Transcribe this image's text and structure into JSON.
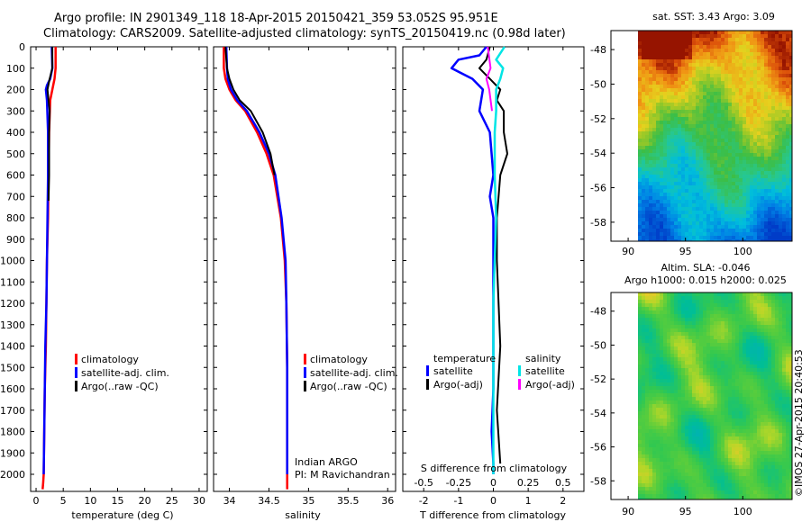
{
  "title": {
    "line1": "Argo profile: IN 2901349_118 18-Apr-2015 20150421_359 53.052S 95.951E",
    "line2": "Climatology: CARS2009. Satellite-adjusted climatology: synTS_20150419.nc (0.98d later)"
  },
  "colors": {
    "climatology": "#ff0000",
    "satellite": "#0000ff",
    "argo": "#000000",
    "sal_satellite": "#00e5e5",
    "sal_argo": "#ff00ff"
  },
  "chart_data": [
    {
      "type": "line",
      "panel": "temperature",
      "xlabel": "temperature (deg C)",
      "ylabel": "",
      "xlim": [
        -1,
        31.5
      ],
      "ylim": [
        2080,
        0
      ],
      "xticks": [
        "0",
        "5",
        "10",
        "15",
        "20",
        "25",
        "30"
      ],
      "yticks": [
        "0",
        "100",
        "200",
        "300",
        "400",
        "500",
        "600",
        "700",
        "800",
        "900",
        "1000",
        "1100",
        "1200",
        "1300",
        "1400",
        "1500",
        "1600",
        "1700",
        "1800",
        "1900",
        "2000"
      ],
      "legend": [
        "climatology",
        "satellite-adj. clim.",
        "Argo(..raw -QC)"
      ],
      "series": [
        {
          "name": "climatology",
          "x": [
            3.6,
            3.6,
            3.4,
            3.0,
            2.6,
            2.4,
            2.3,
            2.2,
            2.0,
            1.9,
            1.8,
            1.6,
            1.5,
            1.4,
            1.3,
            1.2
          ],
          "y": [
            0,
            100,
            150,
            200,
            250,
            400,
            600,
            800,
            1000,
            1200,
            1400,
            1600,
            1800,
            2000,
            2040,
            2070
          ]
        },
        {
          "name": "satellite-adj. clim.",
          "x": [
            2.9,
            3.0,
            2.6,
            2.0,
            1.8,
            2.0,
            2.2,
            2.2,
            2.1,
            2.0,
            1.9,
            1.7,
            1.6,
            1.5,
            1.4
          ],
          "y": [
            0,
            100,
            150,
            180,
            200,
            250,
            400,
            600,
            800,
            1000,
            1200,
            1400,
            1600,
            1800,
            2000
          ]
        },
        {
          "name": "Argo(..raw -QC)",
          "x": [
            3.0,
            3.0,
            2.5,
            2.1,
            2.3,
            2.5,
            2.4,
            2.4,
            2.3
          ],
          "y": [
            0,
            100,
            150,
            200,
            250,
            300,
            400,
            600,
            720
          ]
        }
      ]
    },
    {
      "type": "line",
      "panel": "salinity",
      "xlabel": "salinity",
      "ylabel": "",
      "xlim": [
        33.8,
        36.1
      ],
      "ylim": [
        2080,
        0
      ],
      "xticks": [
        "34",
        "34.5",
        "35",
        "35.5",
        "36"
      ],
      "legend": [
        "climatology",
        "satellite-adj. clim.",
        "Argo(..raw -QC)"
      ],
      "annotations": [
        "Indian ARGO",
        "PI: M Ravichandran"
      ],
      "series": [
        {
          "name": "climatology",
          "x": [
            33.93,
            33.93,
            33.95,
            34.0,
            34.08,
            34.2,
            34.35,
            34.47,
            34.56,
            34.65,
            34.7,
            34.72,
            34.73,
            34.73,
            34.73
          ],
          "y": [
            0,
            100,
            150,
            200,
            250,
            300,
            400,
            500,
            600,
            800,
            1000,
            1200,
            1500,
            1800,
            2070
          ]
        },
        {
          "name": "satellite-adj. clim.",
          "x": [
            33.96,
            33.97,
            33.98,
            34.02,
            34.1,
            34.22,
            34.38,
            34.5,
            34.58,
            34.66,
            34.71,
            34.72,
            34.73,
            34.73,
            34.73
          ],
          "y": [
            0,
            100,
            150,
            200,
            250,
            300,
            400,
            500,
            600,
            800,
            1000,
            1200,
            1500,
            1800,
            2000
          ]
        },
        {
          "name": "Argo(..raw -QC)",
          "x": [
            33.95,
            33.97,
            34.0,
            34.05,
            34.13,
            34.27,
            34.42,
            34.52,
            34.57
          ],
          "y": [
            0,
            100,
            150,
            200,
            250,
            300,
            400,
            500,
            600
          ]
        }
      ]
    },
    {
      "type": "line",
      "panel": "difference",
      "xlabel": "T difference from climatology",
      "x2label": "S difference from climatology",
      "xlim": [
        -2.6,
        2.6
      ],
      "x2lim": [
        -0.65,
        0.65
      ],
      "ylim": [
        2080,
        0
      ],
      "xticks": [
        "-2",
        "-1",
        "0",
        "1",
        "2"
      ],
      "x2ticks": [
        "-0.5",
        "-0.25",
        "0",
        "0.25",
        "0.5"
      ],
      "legend_titles": [
        "temperature",
        "salinity"
      ],
      "legend": [
        "satellite",
        "Argo(-adj)",
        "satellite",
        "Argo(-adj)"
      ],
      "series": [
        {
          "name": "temperature satellite",
          "x": [
            -0.2,
            -0.4,
            -1.0,
            -1.2,
            -0.6,
            -0.3,
            -0.4,
            -0.1,
            0.0,
            -0.1,
            0.0,
            0.0,
            0.0,
            0.0,
            0.0,
            -0.05,
            0.0,
            0.0
          ],
          "y": [
            0,
            40,
            60,
            100,
            150,
            200,
            300,
            400,
            600,
            700,
            800,
            1000,
            1200,
            1400,
            1600,
            1800,
            1950,
            2000
          ]
        },
        {
          "name": "temperature Argo(-adj)",
          "x": [
            -0.1,
            -0.2,
            -0.4,
            -0.1,
            0.2,
            0.1,
            0.3,
            0.3,
            0.4,
            0.2,
            0.1,
            0.1,
            0.2,
            0.1,
            0.2
          ],
          "y": [
            0,
            60,
            100,
            150,
            200,
            250,
            300,
            400,
            500,
            600,
            800,
            1000,
            1400,
            1700,
            1950
          ]
        },
        {
          "name": "salinity satellite",
          "x": [
            0.08,
            0.02,
            0.07,
            0.05,
            0.02,
            0.02,
            0.01,
            0.01,
            0.02,
            0.01,
            0.0,
            0.0,
            0.0,
            0.0
          ],
          "y": [
            0,
            60,
            100,
            150,
            200,
            300,
            400,
            600,
            800,
            1000,
            1200,
            1500,
            1800,
            2000
          ]
        },
        {
          "name": "salinity Argo(-adj)",
          "x": [
            -0.04,
            -0.02,
            -0.05,
            -0.03,
            -0.01
          ],
          "y": [
            0,
            100,
            150,
            200,
            300
          ]
        }
      ]
    },
    {
      "type": "heatmap",
      "panel": "sst-map",
      "title": "sat. SST: 3.43 Argo: 3.09",
      "xticks": [
        "90",
        "95",
        "100"
      ],
      "yticks": [
        "-48",
        "-50",
        "-52",
        "-54",
        "-56",
        "-58"
      ],
      "xlim": [
        88.5,
        104.3
      ],
      "ylim": [
        -59.1,
        -46.9
      ]
    },
    {
      "type": "heatmap",
      "panel": "sla-map",
      "title": "Altim. SLA: -0.046",
      "subtitle": "Argo h1000: 0.015 h2000: 0.025",
      "xticks": [
        "90",
        "95",
        "100"
      ],
      "yticks": [
        "-48",
        "-50",
        "-52",
        "-54",
        "-56",
        "-58"
      ],
      "xlim": [
        88.5,
        104.3
      ],
      "ylim": [
        -59.1,
        -46.9
      ]
    }
  ],
  "credit": "©IMOS 27-Apr-2015 20:40:53"
}
